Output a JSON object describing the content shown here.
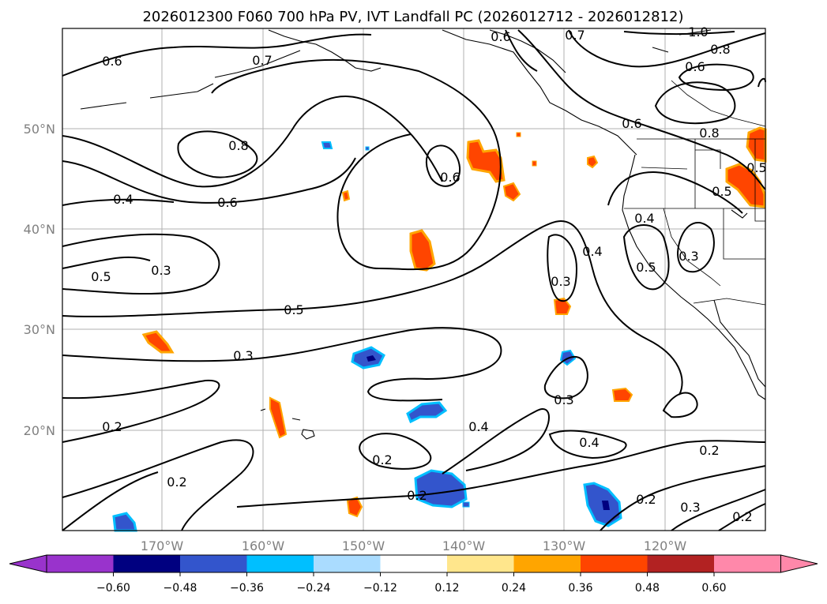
{
  "title": "2026012300 F060 700 hPa PV, IVT Landfall PC (2026012712 - 2026012812)",
  "lon_ticks": [
    "170°W",
    "160°W",
    "150°W",
    "140°W",
    "130°W",
    "120°W"
  ],
  "lat_ticks": [
    "50°N",
    "40°N",
    "30°N",
    "20°N"
  ],
  "contour_labels": [
    "0.6",
    "0.7",
    "0.8",
    "0.6",
    "0.4",
    "0.6",
    "0.3",
    "0.5",
    "0.5",
    "0.3",
    "0.2",
    "0.2",
    "0.2",
    "0.2",
    "0.6",
    "0.7",
    "1.0",
    "0.8",
    "0.6",
    "0.6",
    "0.8",
    "0.5",
    "0.4",
    "0.5",
    "0.3",
    "0.4",
    "0.3",
    "0.3",
    "0.4",
    "0.4",
    "0.2",
    "0.2",
    "0.3",
    "0.2",
    "0.5"
  ],
  "colorbar": {
    "tick_labels": [
      "−0.60",
      "−0.48",
      "−0.36",
      "−0.24",
      "−0.12",
      "0.12",
      "0.24",
      "0.36",
      "0.48",
      "0.60"
    ],
    "colors": [
      "#9933cc",
      "#000080",
      "#3355cc",
      "#00bfff",
      "#aadcff",
      "#ffffff",
      "#ffe68c",
      "#ffa500",
      "#ff4500",
      "#b22222",
      "#ff88aa"
    ]
  }
}
